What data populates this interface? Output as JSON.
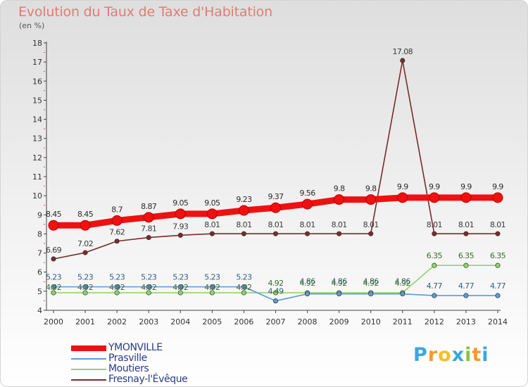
{
  "header": {
    "title": "Evolution du Taux de Taxe d'Habitation",
    "subtitle": "(en %)"
  },
  "brand": {
    "letters": [
      "P",
      "r",
      "o",
      "x",
      "i",
      "t",
      "i"
    ],
    "colors": [
      "#3aa7e0",
      "#f29a2e",
      "#f4c11e",
      "#3aa7e0",
      "#84c441",
      "#f29a2e",
      "#3aa7e0"
    ]
  },
  "chart_data": {
    "type": "line",
    "title": "Evolution du Taux de Taxe d'Habitation",
    "ylabel": "(en %)",
    "xlabel": "",
    "x": [
      "2000",
      "2001",
      "2002",
      "2003",
      "2004",
      "2005",
      "2006",
      "2007",
      "2008",
      "2009",
      "2010",
      "2011",
      "2012",
      "2013",
      "2014"
    ],
    "ylim": [
      4,
      18
    ],
    "yticks": [
      4,
      5,
      6,
      7,
      8,
      9,
      10,
      11,
      12,
      13,
      14,
      15,
      16,
      17,
      18
    ],
    "grid": false,
    "legend_position": "bottom-left",
    "series": [
      {
        "name": "YMONVILLE",
        "color": "#ee1111",
        "labelColor": "#2b2b2b",
        "values": [
          8.45,
          8.45,
          8.7,
          8.87,
          9.05,
          9.05,
          9.23,
          9.37,
          9.56,
          9.8,
          9.8,
          9.9,
          9.9,
          9.9,
          9.9
        ],
        "labels": [
          "8.45",
          "8.45",
          "8.7",
          "8.87",
          "9.05",
          "9.05",
          "9.23",
          "9.37",
          "9.56",
          "9.8",
          "9.8",
          "9.9",
          "9.9",
          "9.9",
          "9.9"
        ]
      },
      {
        "name": "Prasville",
        "color": "#5b9bd5",
        "labelColor": "#2e5f8a",
        "values": [
          5.23,
          5.23,
          5.23,
          5.23,
          5.23,
          5.23,
          5.23,
          4.49,
          4.86,
          4.86,
          4.86,
          4.86,
          4.77,
          4.77,
          4.77
        ],
        "labels": [
          "5.23",
          "5.23",
          "5.23",
          "5.23",
          "5.23",
          "5.23",
          "5.23",
          "4.49",
          "4.86",
          "4.86",
          "4.86",
          "4.86",
          "4.77",
          "4.77",
          "4.77"
        ]
      },
      {
        "name": "Moutiers",
        "color": "#8fd56a",
        "labelColor": "#3d6b2a",
        "values": [
          4.92,
          4.92,
          4.92,
          4.92,
          4.92,
          4.92,
          4.92,
          4.92,
          4.92,
          4.92,
          4.92,
          4.92,
          6.35,
          6.35,
          6.35
        ],
        "labels": [
          "4.92",
          "4.92",
          "4.92",
          "4.92",
          "4.92",
          "4.92",
          "4.92",
          "4.92",
          "4.92",
          "4.92",
          "4.92",
          "4.92",
          "6.35",
          "6.35",
          "6.35"
        ]
      },
      {
        "name": "Fresnay-l'Évêque",
        "color": "#7a2b2b",
        "labelColor": "#3a3a3a",
        "values": [
          6.69,
          7.02,
          7.62,
          7.81,
          7.93,
          8.01,
          8.01,
          8.01,
          8.01,
          8.01,
          8.01,
          17.08,
          8.01,
          8.01,
          8.01
        ],
        "labels": [
          "6.69",
          "7.02",
          "7.62",
          "7.81",
          "7.93",
          "8.01",
          "8.01",
          "8.01",
          "8.01",
          "8.01",
          "8.01",
          "17.08",
          "8.01",
          "8.01",
          "8.01"
        ]
      }
    ]
  }
}
